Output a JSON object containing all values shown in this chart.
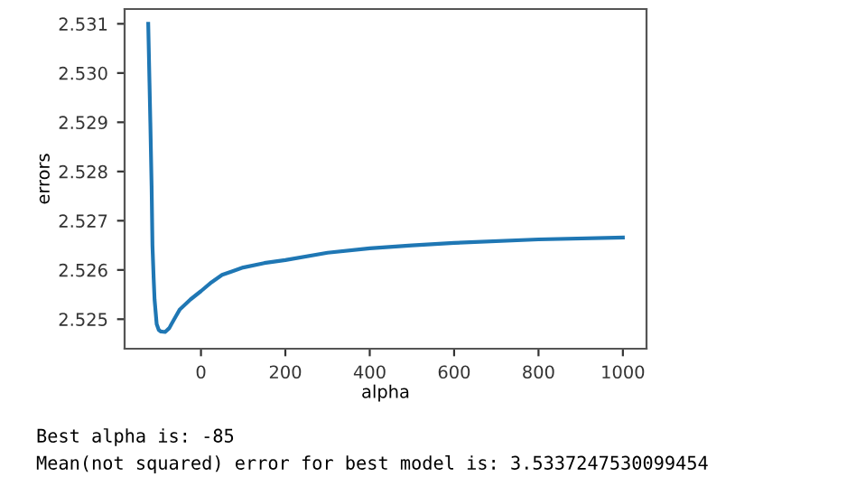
{
  "chart_data": {
    "type": "line",
    "xlabel": "alpha",
    "ylabel": "errors",
    "series": [
      {
        "color": "#1f77b4",
        "x": [
          -125,
          -122,
          -120,
          -117,
          -115,
          -112,
          -110,
          -105,
          -100,
          -95,
          -85,
          -75,
          -70,
          -60,
          -50,
          -25,
          0,
          25,
          50,
          100,
          150,
          200,
          300,
          400,
          500,
          600,
          800,
          1000
        ],
        "values": [
          2.531,
          2.5298,
          2.529,
          2.5277,
          2.5265,
          2.5258,
          2.5254,
          2.5249,
          2.52478,
          2.52475,
          2.52474,
          2.52482,
          2.5249,
          2.52505,
          2.5252,
          2.5254,
          2.52557,
          2.52575,
          2.5259,
          2.52605,
          2.52614,
          2.5262,
          2.52635,
          2.52644,
          2.5265,
          2.52655,
          2.52662,
          2.52666
        ]
      }
    ],
    "xlim": [
      -181,
      1056
    ],
    "ylim": [
      2.5244,
      2.5313
    ],
    "xticks": [
      0,
      200,
      400,
      600,
      800,
      1000
    ],
    "yticks": [
      {
        "value": 2.525,
        "label": "2.525"
      },
      {
        "value": 2.526,
        "label": "2.526"
      },
      {
        "value": 2.527,
        "label": "2.527"
      },
      {
        "value": 2.528,
        "label": "2.528"
      },
      {
        "value": 2.529,
        "label": "2.529"
      },
      {
        "value": 2.53,
        "label": "2.530"
      },
      {
        "value": 2.531,
        "label": "2.531"
      }
    ],
    "grid": false,
    "legend": false,
    "annotations": [
      "Best alpha is: -85",
      "Mean(not squared) error for best model is: 3.5337247530099454"
    ]
  }
}
